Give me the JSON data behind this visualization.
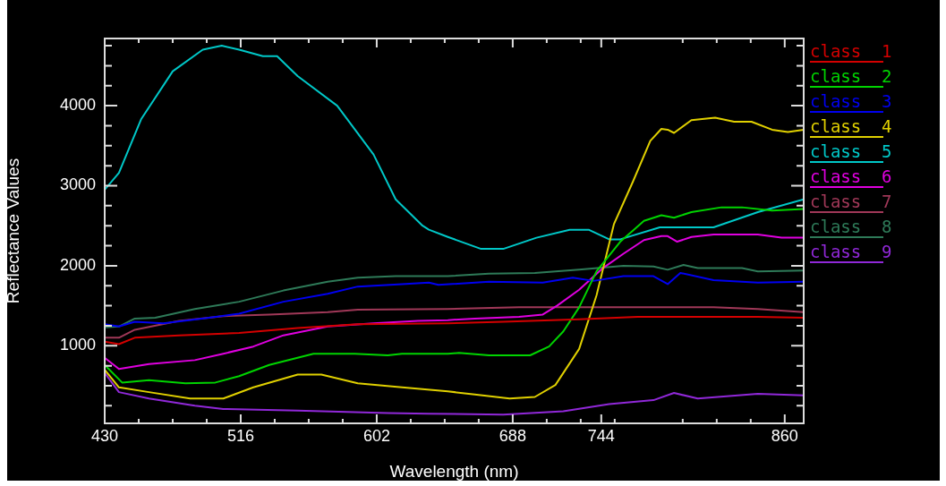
{
  "chart_data": {
    "type": "line",
    "xlabel": "Wavelength (nm)",
    "ylabel": "Reflectance Values",
    "legend": "right",
    "marker": "none",
    "line_style": "solid",
    "xlim": [
      430,
      872
    ],
    "xticks": [
      430,
      {
        "value": 451.5,
        "label": null
      },
      {
        "value": 473,
        "label": null
      },
      {
        "value": 494.5,
        "label": null
      },
      516,
      {
        "value": 537.5,
        "label": null
      },
      {
        "value": 559,
        "label": null
      },
      {
        "value": 580.5,
        "label": null
      },
      602,
      {
        "value": 623.5,
        "label": null
      },
      {
        "value": 645,
        "label": null
      },
      {
        "value": 666.5,
        "label": null
      },
      688,
      {
        "value": 709.5,
        "label": null
      },
      {
        "value": 731,
        "label": null
      },
      {
        "value": 752.5,
        "label": null
      },
      744,
      {
        "value": 795.5,
        "label": null
      },
      {
        "value": 817,
        "label": null
      },
      {
        "value": 838.5,
        "label": null
      },
      860
    ],
    "ylim": [
      30,
      4840
    ],
    "yticks": [
      {
        "value": 250,
        "label": null
      },
      {
        "value": 500,
        "label": null
      },
      {
        "value": 750,
        "label": null
      },
      1000,
      {
        "value": 1250,
        "label": null
      },
      {
        "value": 1500,
        "label": null
      },
      {
        "value": 1750,
        "label": null
      },
      2000,
      {
        "value": 2250,
        "label": null
      },
      {
        "value": 2500,
        "label": null
      },
      {
        "value": 2750,
        "label": null
      },
      3000,
      {
        "value": 3250,
        "label": null
      },
      {
        "value": 3500,
        "label": null
      },
      {
        "value": 3750,
        "label": null
      },
      4000,
      {
        "value": 4250,
        "label": null
      },
      {
        "value": 4500,
        "label": null
      },
      {
        "value": 4750,
        "label": null
      }
    ],
    "series": [
      {
        "name": "class  1",
        "color": "#d40000",
        "x": [
          430,
          439,
          449,
          477,
          515,
          552,
          590,
          647,
          682,
          730,
          767,
          805,
          843,
          872
        ],
        "values": [
          1050,
          1020,
          1100,
          1130,
          1160,
          1220,
          1270,
          1280,
          1300,
          1330,
          1360,
          1360,
          1360,
          1350
        ]
      },
      {
        "name": "class  2",
        "color": "#00d400",
        "x": [
          430,
          441,
          458,
          481,
          500,
          515,
          534,
          562,
          588,
          609,
          618,
          647,
          654,
          673,
          699,
          711,
          720,
          730,
          741,
          756,
          771,
          782,
          790,
          801,
          820,
          833,
          852,
          872
        ],
        "values": [
          760,
          540,
          570,
          530,
          540,
          620,
          760,
          900,
          900,
          880,
          900,
          900,
          910,
          880,
          880,
          990,
          1180,
          1480,
          1930,
          2300,
          2560,
          2630,
          2600,
          2670,
          2730,
          2730,
          2690,
          2710
        ]
      },
      {
        "name": "class  3",
        "color": "#0000f0",
        "x": [
          430,
          439,
          449,
          467,
          496,
          515,
          543,
          571,
          590,
          618,
          635,
          641,
          673,
          707,
          726,
          739,
          758,
          777,
          786,
          794,
          815,
          843,
          872
        ],
        "values": [
          1270,
          1240,
          1300,
          1280,
          1350,
          1400,
          1550,
          1650,
          1740,
          1770,
          1790,
          1760,
          1800,
          1790,
          1850,
          1810,
          1870,
          1870,
          1770,
          1910,
          1820,
          1790,
          1800
        ]
      },
      {
        "name": "class  4",
        "color": "#e0d000",
        "x": [
          430,
          439,
          458,
          484,
          505,
          524,
          552,
          567,
          590,
          618,
          647,
          664,
          686,
          702,
          715,
          730,
          741,
          752,
          764,
          775,
          782,
          786,
          790,
          801,
          816,
          828,
          839,
          852,
          862,
          872
        ],
        "values": [
          700,
          480,
          420,
          340,
          340,
          480,
          640,
          640,
          530,
          480,
          430,
          390,
          340,
          360,
          510,
          960,
          1630,
          2520,
          3050,
          3560,
          3710,
          3700,
          3660,
          3820,
          3850,
          3800,
          3800,
          3700,
          3670,
          3700
        ]
      },
      {
        "name": "class  5",
        "color": "#00c8c8",
        "x": [
          430,
          439,
          453,
          473,
          492,
          504,
          515,
          530,
          539,
          552,
          577,
          600,
          614,
          631,
          635,
          647,
          668,
          682,
          703,
          724,
          736,
          749,
          756,
          781,
          815,
          843,
          872
        ],
        "values": [
          2950,
          3160,
          3830,
          4430,
          4700,
          4750,
          4700,
          4620,
          4620,
          4370,
          4000,
          3390,
          2830,
          2500,
          2450,
          2360,
          2210,
          2210,
          2350,
          2450,
          2450,
          2330,
          2330,
          2480,
          2480,
          2670,
          2830
        ]
      },
      {
        "name": "class  6",
        "color": "#e000e0",
        "x": [
          430,
          439,
          458,
          487,
          505,
          524,
          543,
          571,
          600,
          628,
          647,
          664,
          692,
          707,
          716,
          730,
          745,
          758,
          771,
          782,
          786,
          792,
          801,
          815,
          843,
          858,
          872
        ],
        "values": [
          850,
          710,
          770,
          820,
          900,
          990,
          1130,
          1240,
          1280,
          1310,
          1320,
          1340,
          1360,
          1390,
          1500,
          1700,
          1970,
          2150,
          2320,
          2370,
          2370,
          2300,
          2360,
          2390,
          2390,
          2350,
          2350
        ]
      },
      {
        "name": "class  7",
        "color": "#a03858",
        "x": [
          430,
          439,
          449,
          477,
          505,
          534,
          571,
          590,
          647,
          692,
          730,
          777,
          815,
          843,
          872
        ],
        "values": [
          1100,
          1100,
          1200,
          1310,
          1370,
          1390,
          1420,
          1450,
          1460,
          1480,
          1480,
          1480,
          1480,
          1460,
          1420
        ]
      },
      {
        "name": "class  8",
        "color": "#2e7a58",
        "x": [
          430,
          439,
          449,
          462,
          487,
          515,
          543,
          571,
          590,
          614,
          647,
          673,
          702,
          730,
          758,
          777,
          786,
          796,
          805,
          833,
          843,
          872
        ],
        "values": [
          1230,
          1240,
          1340,
          1350,
          1460,
          1550,
          1690,
          1800,
          1850,
          1870,
          1870,
          1900,
          1910,
          1950,
          2000,
          1990,
          1950,
          2010,
          1970,
          1970,
          1930,
          1940
        ]
      },
      {
        "name": "class  9",
        "color": "#9028d8",
        "x": [
          430,
          439,
          458,
          487,
          505,
          552,
          609,
          635,
          682,
          720,
          749,
          777,
          790,
          805,
          843,
          872
        ],
        "values": [
          660,
          420,
          340,
          250,
          210,
          190,
          160,
          150,
          140,
          180,
          270,
          320,
          410,
          340,
          400,
          380
        ]
      }
    ]
  }
}
